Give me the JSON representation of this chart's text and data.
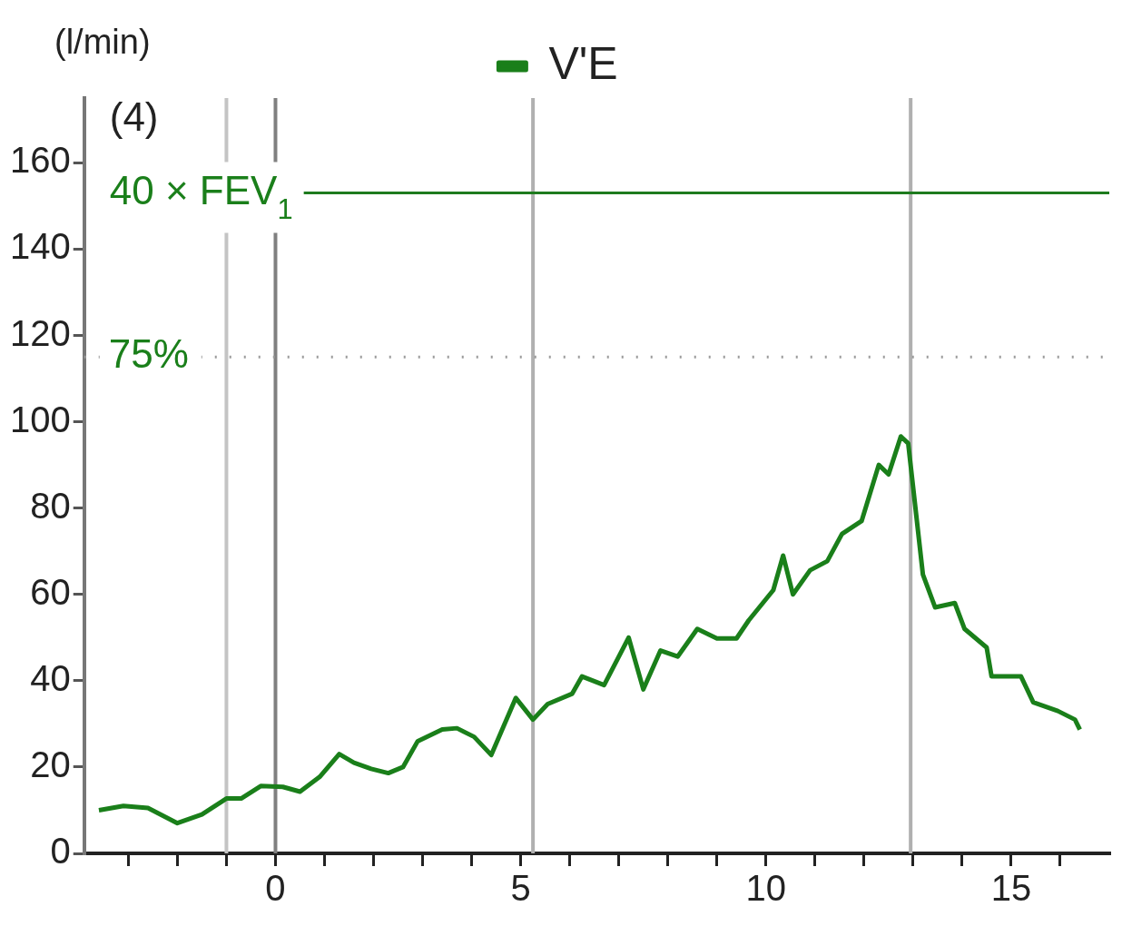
{
  "chart_data": {
    "type": "line",
    "ylabel": "(l/min)",
    "annotations": [
      "(4)",
      {
        "text": "75%",
        "x": -3.4,
        "y": 115
      }
    ],
    "legend": "top",
    "xlim": [
      -3.9,
      17
    ],
    "ylim": [
      0,
      175
    ],
    "xticks": [
      {
        "value": -3,
        "label": null
      },
      {
        "value": -2,
        "label": null
      },
      {
        "value": -1,
        "label": null
      },
      0,
      {
        "value": 1,
        "label": null
      },
      {
        "value": 2,
        "label": null
      },
      {
        "value": 3,
        "label": null
      },
      {
        "value": 4,
        "label": null
      },
      5,
      {
        "value": 6,
        "label": null
      },
      {
        "value": 7,
        "label": null
      },
      {
        "value": 8,
        "label": null
      },
      {
        "value": 9,
        "label": null
      },
      10,
      {
        "value": 11,
        "label": null
      },
      {
        "value": 12,
        "label": null
      },
      {
        "value": 13,
        "label": null
      },
      {
        "value": 14,
        "label": null
      },
      15,
      {
        "value": 16,
        "label": null
      }
    ],
    "yticks": [
      0,
      20,
      40,
      60,
      80,
      100,
      120,
      140,
      160
    ],
    "grid": false,
    "marker": "none",
    "line_style": "solid",
    "ref_lines": [
      {
        "axis": "x",
        "value": -1,
        "color": "#c4c4c4"
      },
      {
        "axis": "x",
        "value": 0,
        "color": "#808080"
      },
      {
        "axis": "x",
        "value": 5.25,
        "color": "#b0b0b0"
      },
      {
        "axis": "x",
        "value": 12.95,
        "color": "#b0b0b0"
      },
      {
        "axis": "y",
        "value": 153,
        "label": "40 × FEV$_{1}$",
        "color": "#1e7b1e",
        "line_style": "solid"
      },
      {
        "axis": "y",
        "value": 115,
        "color": "#9a9a9a",
        "line_style": "dotted"
      }
    ],
    "series": [
      {
        "name": "V'E",
        "color": "#1a7f1a",
        "x": [
          -3.6,
          -3.1,
          -2.6,
          -2.0,
          -1.5,
          -1.0,
          -0.7,
          -0.3,
          0.15,
          0.5,
          0.9,
          1.3,
          1.6,
          1.95,
          2.3,
          2.6,
          2.9,
          3.4,
          3.7,
          4.05,
          4.4,
          4.9,
          5.25,
          5.55,
          6.05,
          6.25,
          6.7,
          7.2,
          7.5,
          7.85,
          8.2,
          8.6,
          9.0,
          9.4,
          9.65,
          10.15,
          10.35,
          10.55,
          10.9,
          11.25,
          11.55,
          11.95,
          12.3,
          12.5,
          12.75,
          12.9,
          13.2,
          13.45,
          13.85,
          14.05,
          14.5,
          14.6,
          15.2,
          15.45,
          15.95,
          16.3,
          16.4
        ],
        "values": [
          10,
          11,
          10.5,
          7,
          9,
          12.7,
          12.7,
          15.6,
          15.4,
          14.3,
          17.7,
          23,
          21,
          19.6,
          18.6,
          20,
          26,
          28.7,
          29,
          27,
          22.8,
          36,
          31,
          34.6,
          37,
          41,
          39,
          50,
          38,
          47,
          45.6,
          52,
          49.8,
          49.8,
          54,
          61,
          69,
          60,
          65.6,
          67.7,
          74,
          77,
          90,
          87.8,
          96.6,
          95,
          64.6,
          57,
          58,
          52,
          47.7,
          41,
          41,
          35,
          33,
          31,
          28.7
        ]
      }
    ]
  }
}
